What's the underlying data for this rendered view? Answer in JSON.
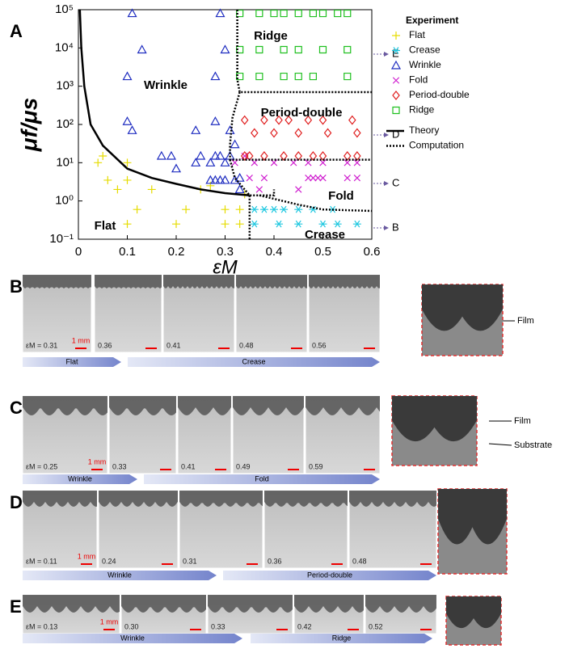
{
  "chart_data": {
    "type": "scatter",
    "panel_label": "A",
    "xlabel": "εM",
    "ylabel": "μf/μs",
    "ylog": true,
    "xlim": [
      0,
      0.6
    ],
    "xticks": [
      0,
      0.1,
      0.2,
      0.3,
      0.4,
      0.5,
      0.6
    ],
    "ylim": [
      0.1,
      100000
    ],
    "yticks": [
      {
        "value": 0.1,
        "label": "10⁻¹"
      },
      {
        "value": 1,
        "label": "10⁰"
      },
      {
        "value": 10,
        "label": "10¹"
      },
      {
        "value": 100,
        "label": "10²"
      },
      {
        "value": 1000,
        "label": "10³"
      },
      {
        "value": 10000,
        "label": "10⁴"
      },
      {
        "value": 100000,
        "label": "10⁵"
      }
    ],
    "legend_title": "Experiment",
    "legend": "outside-right",
    "series": [
      {
        "name": "Flat",
        "color": "#e6dc00",
        "marker": "plus",
        "x": [
          0.04,
          0.05,
          0.06,
          0.08,
          0.1,
          0.1,
          0.12,
          0.1,
          0.15,
          0.2,
          0.22,
          0.25,
          0.27,
          0.3,
          0.3,
          0.33,
          0.33,
          0.34
        ],
        "y": [
          10,
          15,
          3.5,
          2,
          10,
          3.5,
          0.6,
          0.25,
          2,
          0.25,
          0.6,
          2,
          2.5,
          0.6,
          0.25,
          0.6,
          0.25,
          1.5
        ]
      },
      {
        "name": "Crease",
        "color": "#20c8e0",
        "marker": "star",
        "x": [
          0.36,
          0.38,
          0.4,
          0.42,
          0.45,
          0.48,
          0.52,
          0.36,
          0.41,
          0.45,
          0.5,
          0.53,
          0.57
        ],
        "y": [
          0.6,
          0.6,
          0.6,
          0.6,
          0.6,
          0.6,
          0.6,
          0.25,
          0.25,
          0.25,
          0.25,
          0.25,
          0.25
        ]
      },
      {
        "name": "Wrinkle",
        "color": "#1e2cc0",
        "marker": "triangle",
        "x": [
          0.11,
          0.13,
          0.1,
          0.1,
          0.11,
          0.17,
          0.19,
          0.2,
          0.24,
          0.24,
          0.25,
          0.27,
          0.28,
          0.29,
          0.3,
          0.27,
          0.28,
          0.29,
          0.3,
          0.32,
          0.33,
          0.28,
          0.28,
          0.29,
          0.3,
          0.31,
          0.32,
          0.31,
          0.33
        ],
        "y": [
          80000,
          9000,
          1800,
          120,
          70,
          15,
          15,
          7,
          10,
          70,
          15,
          10,
          15,
          15,
          10,
          3.5,
          3.5,
          3.5,
          3.5,
          3.5,
          2,
          120,
          1800,
          80000,
          9000,
          70,
          30,
          15,
          4
        ]
      },
      {
        "name": "Fold",
        "color": "#d020d0",
        "marker": "x",
        "x": [
          0.32,
          0.34,
          0.36,
          0.4,
          0.44,
          0.47,
          0.5,
          0.55,
          0.57,
          0.35,
          0.38,
          0.47,
          0.48,
          0.49,
          0.5,
          0.55,
          0.57,
          0.37,
          0.45
        ],
        "y": [
          10,
          15,
          10,
          10,
          10,
          10,
          10,
          10,
          10,
          4,
          4,
          4,
          4,
          4,
          4,
          4,
          4,
          2,
          2
        ]
      },
      {
        "name": "Period-double",
        "color": "#e02020",
        "marker": "diamond",
        "x": [
          0.34,
          0.35,
          0.38,
          0.42,
          0.45,
          0.48,
          0.5,
          0.55,
          0.57,
          0.34,
          0.38,
          0.41,
          0.43,
          0.47,
          0.5,
          0.56,
          0.36,
          0.4,
          0.45,
          0.51,
          0.57
        ],
        "y": [
          15,
          15,
          15,
          15,
          15,
          15,
          15,
          15,
          15,
          130,
          130,
          130,
          130,
          130,
          130,
          130,
          60,
          60,
          60,
          60,
          60
        ]
      },
      {
        "name": "Ridge",
        "color": "#20c020",
        "marker": "square",
        "x": [
          0.33,
          0.37,
          0.4,
          0.42,
          0.45,
          0.48,
          0.5,
          0.53,
          0.55,
          0.33,
          0.37,
          0.42,
          0.45,
          0.5,
          0.55,
          0.33,
          0.37,
          0.42,
          0.45,
          0.48,
          0.55
        ],
        "y": [
          80000,
          80000,
          80000,
          80000,
          80000,
          80000,
          80000,
          80000,
          80000,
          9000,
          9000,
          9000,
          9000,
          9000,
          9000,
          1800,
          1800,
          1800,
          1800,
          1800,
          1800
        ]
      },
      {
        "name": "Theory",
        "color": "#000000",
        "linestyle": "solid",
        "x": [
          0.003,
          0.006,
          0.012,
          0.025,
          0.05,
          0.1,
          0.15,
          0.2,
          0.25,
          0.3,
          0.35
        ],
        "y": [
          100000,
          10000,
          1000,
          100,
          28,
          7,
          4,
          2.8,
          2,
          1.6,
          1.4
        ]
      },
      {
        "name": "Computation",
        "color": "#000000",
        "linestyle": "dotted",
        "x": [
          0.325,
          0.325,
          0.33,
          0.6,
          null,
          0.33,
          0.315,
          0.31,
          0.31,
          0.6,
          null,
          0.31,
          0.32,
          0.35,
          0.4,
          0.4,
          null,
          0.35,
          0.35,
          null,
          0.37,
          0.45,
          0.5,
          0.6
        ],
        "y": [
          100000,
          1500,
          700,
          700,
          null,
          700,
          150,
          30,
          12,
          12,
          null,
          12,
          4,
          1.4,
          1.4,
          2,
          null,
          1.4,
          0.1,
          null,
          1.4,
          0.8,
          0.6,
          0.55
        ]
      }
    ],
    "annotations": [
      "Ridge",
      "Wrinkle",
      "Period-double",
      "Fold",
      "Flat",
      "Crease"
    ],
    "side_markers": [
      "E",
      "D",
      "C",
      "B"
    ]
  },
  "panels": [
    {
      "label": "B",
      "strains": [
        "εM = 0.31",
        "0.36",
        "0.41",
        "0.48",
        "0.56"
      ],
      "scale": "1 mm",
      "phases": [
        "Flat",
        "Crease"
      ],
      "callouts": [
        "Film"
      ]
    },
    {
      "label": "C",
      "strains": [
        "εM = 0.25",
        "0.33",
        "0.41",
        "0.49",
        "0.59"
      ],
      "scale": "1 mm",
      "phases": [
        "Wrinkle",
        "Fold"
      ],
      "callouts": [
        "Film",
        "Substrate"
      ]
    },
    {
      "label": "D",
      "strains": [
        "εM = 0.11",
        "0.24",
        "0.31",
        "0.36",
        "0.48"
      ],
      "scale": "1 mm",
      "phases": [
        "Wrinkle",
        "Period-double"
      ],
      "callouts": []
    },
    {
      "label": "E",
      "strains": [
        "εM = 0.13",
        "0.30",
        "0.33",
        "0.42",
        "0.52"
      ],
      "scale": "1 mm",
      "phases": [
        "Wrinkle",
        "Ridge"
      ],
      "callouts": []
    }
  ]
}
